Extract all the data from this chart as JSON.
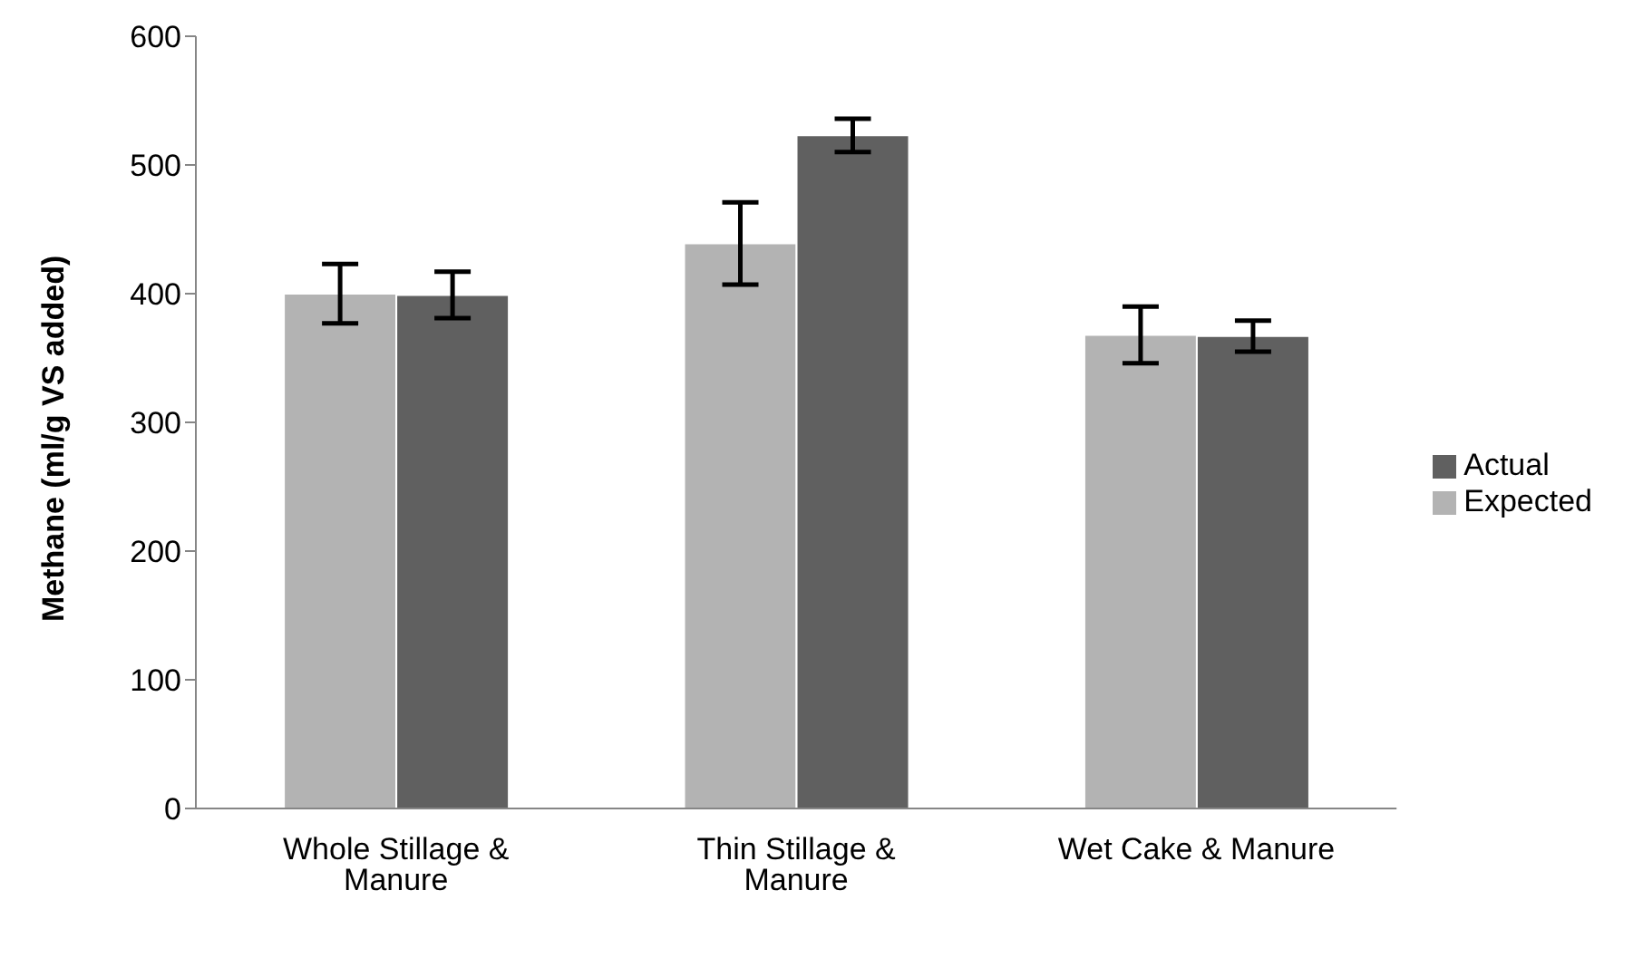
{
  "chart_data": {
    "type": "bar",
    "ylabel": "Methane (ml/g VS added)",
    "categories": [
      "Whole Stillage & Manure",
      "Thin Stillage & Manure",
      "Wet Cake & Manure"
    ],
    "series": [
      {
        "name": "Expected",
        "color": "#b3b3b3",
        "values": [
          400,
          439,
          368
        ],
        "errors": [
          23,
          32,
          22
        ]
      },
      {
        "name": "Actual",
        "color": "#606060",
        "values": [
          399,
          523,
          367
        ],
        "errors": [
          18,
          13,
          12
        ]
      }
    ],
    "ylim": [
      0,
      600
    ],
    "yticks": [
      0,
      100,
      200,
      300,
      400,
      500,
      600
    ],
    "grid": false,
    "legend": "right"
  }
}
